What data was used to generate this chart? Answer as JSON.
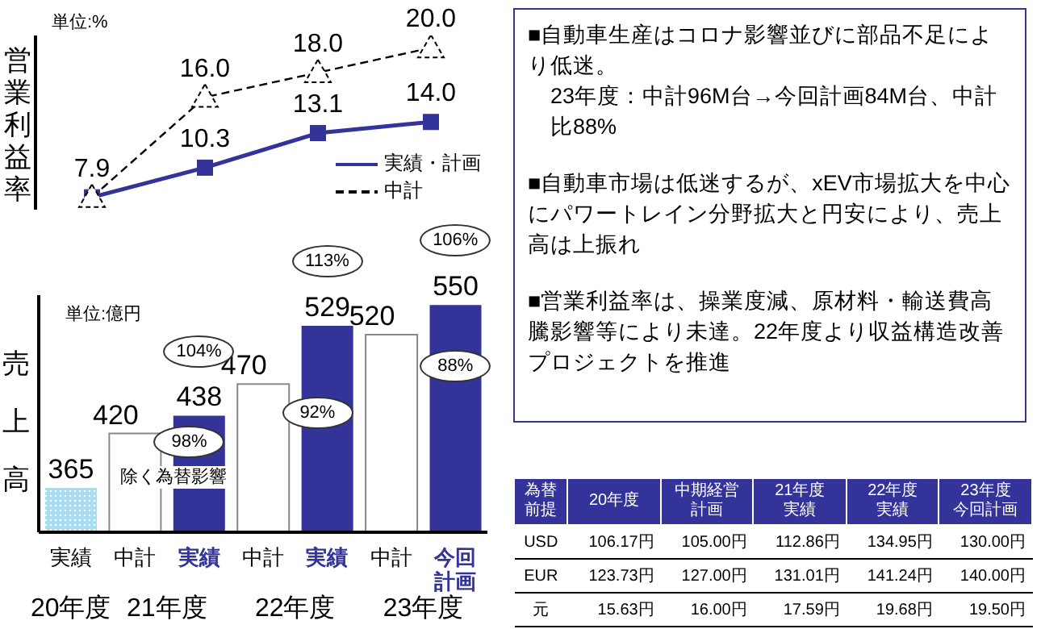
{
  "chart_data": [
    {
      "type": "line",
      "categories": [
        null,
        null,
        null,
        null
      ],
      "tick_labels": false,
      "ylabel": "営業利益率",
      "legend": "bottom right",
      "annotations": [
        "単位:%"
      ],
      "series": [
        {
          "name": "実績・計画",
          "color": "#333399",
          "values": [
            7.9,
            10.3,
            13.1,
            14.0
          ],
          "marker": "square",
          "line_style": "solid",
          "value_labels": [
            null,
            "10.3",
            "13.1",
            "14.0"
          ]
        },
        {
          "name": "中計",
          "color": "#000000",
          "values": [
            7.9,
            16.0,
            18.0,
            20.0
          ],
          "marker": "triangle",
          "line_style": "dashed",
          "value_labels": [
            "7.9",
            "16.0",
            "18.0",
            "20.0"
          ]
        }
      ]
    },
    {
      "type": "bar",
      "categories": [
        "実績",
        "中計",
        "実績",
        "中計",
        "実績",
        "中計",
        "今回計画"
      ],
      "values": [
        365,
        420,
        438,
        470,
        529,
        520,
        550
      ],
      "colors": [
        "#a8dcf2",
        "#ffffff",
        "#333399",
        "#ffffff",
        "#333399",
        "#ffffff",
        "#333399"
      ],
      "data_labels": true,
      "ylim": [
        320,
        560
      ],
      "tick_labels": "x",
      "ylabel": "売上高",
      "annotations": [
        "単位:億円",
        "104%",
        "98%",
        "除く為替影響",
        "113%",
        "92%",
        "106%",
        "88%",
        "20年度",
        "21年度",
        "22年度",
        "23年度"
      ]
    },
    {
      "type": "other",
      "annotations": [
        "■自動車生産はコロナ影響並びに部品不足により低迷。",
        "23年度：中計96M台→今回計画84M台、中計比88%",
        "■自動車市場は低迷するが、xEV市場拡大を中心にパワートレイン分野拡大と円安により、売上高は上振れ",
        "■営業利益率は、操業度減、原材料・輸送費高騰影響等により未達。22年度より収益構造改善プロジェクトを推進"
      ]
    },
    {
      "type": "other",
      "ylabel": "為替前提",
      "categories": [
        "20年度",
        "中期経営計画",
        "21年度実績",
        "22年度実績",
        "23年度今回計画"
      ],
      "y_categories": [
        "USD",
        "EUR",
        "元"
      ],
      "cell_labels": [
        [
          "106.17円",
          "105.00円",
          "112.86円",
          "134.95円",
          "130.00円"
        ],
        [
          "123.73円",
          "127.00円",
          "131.01円",
          "141.24円",
          "140.00円"
        ],
        [
          "15.63円",
          "16.00円",
          "17.59円",
          "19.68円",
          "19.50円"
        ]
      ]
    }
  ]
}
